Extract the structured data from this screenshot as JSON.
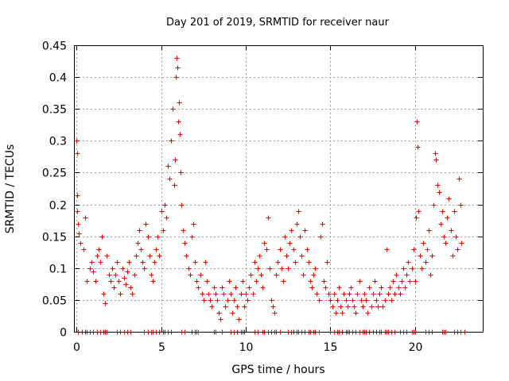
{
  "chart_data": {
    "type": "scatter",
    "title": "Day 201 of 2019, SRMTID for receiver naur",
    "xlabel": "GPS time / hours",
    "ylabel": "SRMTID / TECUs",
    "xlim": [
      -0.1,
      24
    ],
    "ylim": [
      0,
      0.45
    ],
    "x_ticks": [
      0,
      5,
      10,
      15,
      20
    ],
    "y_ticks": [
      0,
      0.05,
      0.1,
      0.15,
      0.2,
      0.25,
      0.3,
      0.35,
      0.4,
      0.45
    ],
    "x_tick_labels": [
      "0",
      "5",
      "10",
      "15",
      "20"
    ],
    "y_tick_labels": [
      "0",
      "0.05",
      "0.1",
      "0.15",
      "0.2",
      "0.25",
      "0.3",
      "0.35",
      "0.4",
      "0.45"
    ],
    "grid": true,
    "marker": "plus",
    "color": "#e00000",
    "series": [
      {
        "name": "naur",
        "points": [
          [
            0.0,
            0.3
          ],
          [
            0.02,
            0.28
          ],
          [
            0.03,
            0.215
          ],
          [
            0.05,
            0.19
          ],
          [
            0.08,
            0.17
          ],
          [
            0.12,
            0.155
          ],
          [
            0.25,
            0.14
          ],
          [
            0.4,
            0.13
          ],
          [
            0.5,
            0.18
          ],
          [
            0.6,
            0.08
          ],
          [
            0.8,
            0.1
          ],
          [
            0.9,
            0.11
          ],
          [
            1.0,
            0.095
          ],
          [
            1.1,
            0.08
          ],
          [
            1.2,
            0.12
          ],
          [
            1.3,
            0.13
          ],
          [
            1.4,
            0.11
          ],
          [
            1.5,
            0.15
          ],
          [
            1.6,
            0.06
          ],
          [
            1.7,
            0.045
          ],
          [
            1.8,
            0.12
          ],
          [
            1.9,
            0.09
          ],
          [
            2.0,
            0.08
          ],
          [
            2.1,
            0.1
          ],
          [
            2.2,
            0.07
          ],
          [
            2.3,
            0.09
          ],
          [
            2.4,
            0.11
          ],
          [
            2.5,
            0.08
          ],
          [
            2.6,
            0.06
          ],
          [
            2.7,
            0.1
          ],
          [
            2.8,
            0.085
          ],
          [
            2.9,
            0.075
          ],
          [
            3.0,
            0.095
          ],
          [
            3.1,
            0.11
          ],
          [
            3.2,
            0.07
          ],
          [
            3.3,
            0.06
          ],
          [
            3.4,
            0.09
          ],
          [
            3.5,
            0.12
          ],
          [
            3.6,
            0.14
          ],
          [
            3.7,
            0.16
          ],
          [
            3.8,
            0.13
          ],
          [
            3.9,
            0.11
          ],
          [
            4.0,
            0.1
          ],
          [
            4.1,
            0.17
          ],
          [
            4.2,
            0.15
          ],
          [
            4.3,
            0.12
          ],
          [
            4.4,
            0.09
          ],
          [
            4.5,
            0.08
          ],
          [
            4.6,
            0.11
          ],
          [
            4.7,
            0.13
          ],
          [
            4.8,
            0.15
          ],
          [
            4.9,
            0.12
          ],
          [
            5.0,
            0.19
          ],
          [
            5.1,
            0.16
          ],
          [
            5.2,
            0.2
          ],
          [
            5.3,
            0.18
          ],
          [
            5.4,
            0.26
          ],
          [
            5.5,
            0.24
          ],
          [
            5.6,
            0.3
          ],
          [
            5.7,
            0.35
          ],
          [
            5.75,
            0.23
          ],
          [
            5.8,
            0.27
          ],
          [
            5.85,
            0.4
          ],
          [
            5.9,
            0.43
          ],
          [
            5.95,
            0.415
          ],
          [
            6.0,
            0.33
          ],
          [
            6.05,
            0.36
          ],
          [
            6.1,
            0.31
          ],
          [
            6.15,
            0.25
          ],
          [
            6.2,
            0.2
          ],
          [
            6.3,
            0.16
          ],
          [
            6.4,
            0.14
          ],
          [
            6.5,
            0.12
          ],
          [
            6.6,
            0.1
          ],
          [
            6.7,
            0.09
          ],
          [
            6.8,
            0.15
          ],
          [
            6.9,
            0.17
          ],
          [
            7.0,
            0.11
          ],
          [
            7.1,
            0.08
          ],
          [
            7.2,
            0.07
          ],
          [
            7.3,
            0.09
          ],
          [
            7.4,
            0.06
          ],
          [
            7.5,
            0.05
          ],
          [
            7.6,
            0.11
          ],
          [
            7.7,
            0.08
          ],
          [
            7.8,
            0.06
          ],
          [
            7.9,
            0.05
          ],
          [
            8.0,
            0.04
          ],
          [
            8.1,
            0.07
          ],
          [
            8.2,
            0.06
          ],
          [
            8.3,
            0.05
          ],
          [
            8.4,
            0.03
          ],
          [
            8.5,
            0.02
          ],
          [
            8.6,
            0.07
          ],
          [
            8.7,
            0.06
          ],
          [
            8.8,
            0.04
          ],
          [
            8.9,
            0.05
          ],
          [
            9.0,
            0.08
          ],
          [
            9.1,
            0.06
          ],
          [
            9.2,
            0.03
          ],
          [
            9.3,
            0.05
          ],
          [
            9.4,
            0.07
          ],
          [
            9.5,
            0.04
          ],
          [
            9.6,
            0.02
          ],
          [
            9.7,
            0.06
          ],
          [
            9.8,
            0.08
          ],
          [
            9.9,
            0.04
          ],
          [
            10.0,
            0.06
          ],
          [
            10.1,
            0.05
          ],
          [
            10.2,
            0.07
          ],
          [
            10.3,
            0.09
          ],
          [
            10.4,
            0.06
          ],
          [
            10.5,
            0.11
          ],
          [
            10.6,
            0.08
          ],
          [
            10.7,
            0.1
          ],
          [
            10.8,
            0.12
          ],
          [
            10.9,
            0.09
          ],
          [
            11.0,
            0.07
          ],
          [
            11.1,
            0.14
          ],
          [
            11.2,
            0.13
          ],
          [
            11.3,
            0.18
          ],
          [
            11.4,
            0.1
          ],
          [
            11.5,
            0.05
          ],
          [
            11.6,
            0.04
          ],
          [
            11.7,
            0.03
          ],
          [
            11.8,
            0.09
          ],
          [
            11.9,
            0.11
          ],
          [
            12.0,
            0.13
          ],
          [
            12.1,
            0.1
          ],
          [
            12.2,
            0.08
          ],
          [
            12.3,
            0.15
          ],
          [
            12.4,
            0.12
          ],
          [
            12.5,
            0.1
          ],
          [
            12.6,
            0.14
          ],
          [
            12.7,
            0.16
          ],
          [
            12.8,
            0.13
          ],
          [
            12.9,
            0.11
          ],
          [
            13.0,
            0.17
          ],
          [
            13.1,
            0.19
          ],
          [
            13.2,
            0.15
          ],
          [
            13.3,
            0.12
          ],
          [
            13.4,
            0.09
          ],
          [
            13.5,
            0.16
          ],
          [
            13.6,
            0.13
          ],
          [
            13.7,
            0.11
          ],
          [
            13.8,
            0.08
          ],
          [
            13.9,
            0.07
          ],
          [
            14.0,
            0.09
          ],
          [
            14.1,
            0.1
          ],
          [
            14.2,
            0.06
          ],
          [
            14.3,
            0.05
          ],
          [
            14.4,
            0.15
          ],
          [
            14.5,
            0.17
          ],
          [
            14.6,
            0.08
          ],
          [
            14.7,
            0.07
          ],
          [
            14.8,
            0.11
          ],
          [
            14.9,
            0.06
          ],
          [
            15.0,
            0.05
          ],
          [
            15.1,
            0.04
          ],
          [
            15.2,
            0.06
          ],
          [
            15.3,
            0.03
          ],
          [
            15.4,
            0.05
          ],
          [
            15.5,
            0.07
          ],
          [
            15.6,
            0.04
          ],
          [
            15.7,
            0.03
          ],
          [
            15.8,
            0.06
          ],
          [
            15.9,
            0.05
          ],
          [
            16.0,
            0.04
          ],
          [
            16.1,
            0.06
          ],
          [
            16.2,
            0.07
          ],
          [
            16.3,
            0.05
          ],
          [
            16.4,
            0.04
          ],
          [
            16.5,
            0.03
          ],
          [
            16.6,
            0.06
          ],
          [
            16.7,
            0.08
          ],
          [
            16.8,
            0.05
          ],
          [
            16.9,
            0.04
          ],
          [
            17.0,
            0.06
          ],
          [
            17.1,
            0.05
          ],
          [
            17.2,
            0.03
          ],
          [
            17.3,
            0.07
          ],
          [
            17.4,
            0.04
          ],
          [
            17.5,
            0.06
          ],
          [
            17.6,
            0.08
          ],
          [
            17.7,
            0.05
          ],
          [
            17.8,
            0.04
          ],
          [
            17.9,
            0.06
          ],
          [
            18.0,
            0.07
          ],
          [
            18.1,
            0.04
          ],
          [
            18.2,
            0.05
          ],
          [
            18.3,
            0.13
          ],
          [
            18.4,
            0.06
          ],
          [
            18.5,
            0.07
          ],
          [
            18.6,
            0.05
          ],
          [
            18.7,
            0.08
          ],
          [
            18.8,
            0.06
          ],
          [
            18.9,
            0.09
          ],
          [
            19.0,
            0.07
          ],
          [
            19.1,
            0.06
          ],
          [
            19.2,
            0.08
          ],
          [
            19.3,
            0.1
          ],
          [
            19.4,
            0.07
          ],
          [
            19.5,
            0.09
          ],
          [
            19.6,
            0.11
          ],
          [
            19.7,
            0.08
          ],
          [
            19.8,
            0.1
          ],
          [
            19.9,
            0.13
          ],
          [
            20.0,
            0.08
          ],
          [
            20.05,
            0.18
          ],
          [
            20.1,
            0.33
          ],
          [
            20.15,
            0.29
          ],
          [
            20.2,
            0.19
          ],
          [
            20.3,
            0.12
          ],
          [
            20.4,
            0.1
          ],
          [
            20.5,
            0.14
          ],
          [
            20.6,
            0.11
          ],
          [
            20.7,
            0.13
          ],
          [
            20.8,
            0.16
          ],
          [
            20.9,
            0.09
          ],
          [
            21.0,
            0.12
          ],
          [
            21.1,
            0.2
          ],
          [
            21.2,
            0.28
          ],
          [
            21.25,
            0.27
          ],
          [
            21.3,
            0.23
          ],
          [
            21.4,
            0.22
          ],
          [
            21.5,
            0.17
          ],
          [
            21.6,
            0.19
          ],
          [
            21.7,
            0.15
          ],
          [
            21.8,
            0.14
          ],
          [
            21.9,
            0.18
          ],
          [
            22.0,
            0.21
          ],
          [
            22.1,
            0.16
          ],
          [
            22.2,
            0.12
          ],
          [
            22.3,
            0.19
          ],
          [
            22.4,
            0.15
          ],
          [
            22.5,
            0.13
          ],
          [
            22.6,
            0.24
          ],
          [
            22.7,
            0.2
          ],
          [
            22.75,
            0.14
          ]
        ]
      }
    ],
    "zero_points_x": [
      0.1,
      0.3,
      0.5,
      0.6,
      0.8,
      1.0,
      1.2,
      1.4,
      1.6,
      1.7,
      1.8,
      2.4,
      2.6,
      2.8,
      3.0,
      3.2,
      4.0,
      4.2,
      4.4,
      4.5,
      4.7,
      4.9,
      5.1,
      5.2,
      5.4,
      5.6,
      6.2,
      6.4,
      6.8,
      7.0,
      7.1,
      7.2,
      8.1,
      8.2,
      8.6,
      9.1,
      9.3,
      9.5,
      9.7,
      9.8,
      9.9,
      10.5,
      10.7,
      11.0,
      11.1,
      11.3,
      11.5,
      11.7,
      11.8,
      12.0,
      12.5,
      12.7,
      12.8,
      13.0,
      13.1,
      13.3,
      13.5,
      13.7,
      13.8,
      14.0,
      14.1,
      14.3,
      15.0,
      15.2,
      15.4,
      15.5,
      15.7,
      15.9,
      16.0,
      16.1,
      16.3,
      16.5,
      16.7,
      16.9,
      17.0,
      17.1,
      17.3,
      17.5,
      17.7,
      17.9,
      18.0,
      18.2,
      18.3,
      18.4,
      18.6,
      18.8,
      19.1,
      19.3,
      19.5,
      19.8,
      19.9,
      20.0,
      20.6,
      20.8,
      21.0,
      21.6,
      21.7,
      21.8,
      22.3,
      22.5,
      22.7,
      22.9
    ]
  }
}
